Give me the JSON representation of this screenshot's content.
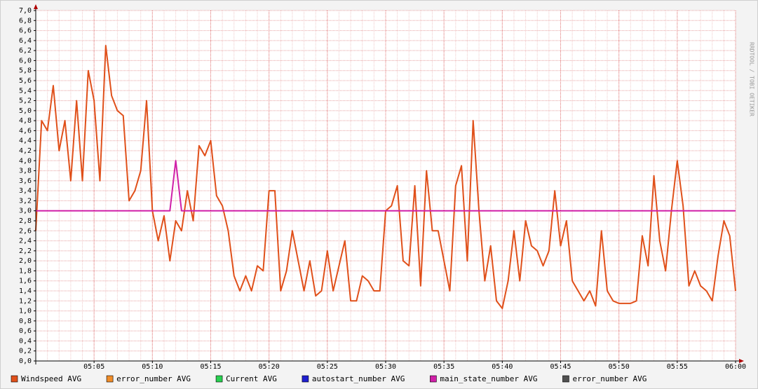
{
  "chart_data": {
    "type": "line",
    "watermark": "RRDTOOL / TOBI OETIKER",
    "x": [
      0,
      0.5,
      1,
      1.5,
      2,
      2.5,
      3,
      3.5,
      4,
      4.5,
      5,
      5.5,
      6,
      6.5,
      7,
      7.5,
      8,
      8.5,
      9,
      9.5,
      10,
      10.5,
      11,
      11.5,
      12,
      12.5,
      13,
      13.5,
      14,
      14.5,
      15,
      15.5,
      16,
      16.5,
      17,
      17.5,
      18,
      18.5,
      19,
      19.5,
      20,
      20.5,
      21,
      21.5,
      22,
      22.5,
      23,
      23.5,
      24,
      24.5,
      25,
      25.5,
      26,
      26.5,
      27,
      27.5,
      28,
      28.5,
      29,
      29.5,
      30,
      30.5,
      31,
      31.5,
      32,
      32.5,
      33,
      33.5,
      34,
      34.5,
      35,
      35.5,
      36,
      36.5,
      37,
      37.5,
      38,
      38.5,
      39,
      39.5,
      40,
      40.5,
      41,
      41.5,
      42,
      42.5,
      43,
      43.5,
      44,
      44.5,
      45,
      45.5,
      46,
      46.5,
      47,
      47.5,
      48,
      48.5,
      49,
      49.5,
      50,
      50.5,
      51,
      51.5,
      52,
      52.5,
      53,
      53.5,
      54,
      54.5,
      55,
      55.5,
      56,
      56.5,
      57,
      57.5,
      58,
      58.5,
      59,
      59.5,
      60
    ],
    "series": [
      {
        "name": "Windspeed AVG",
        "color": "#e0501a",
        "values": [
          2.6,
          4.8,
          4.6,
          5.5,
          4.2,
          4.8,
          3.6,
          5.2,
          3.6,
          5.8,
          5.2,
          3.6,
          6.3,
          5.3,
          5.0,
          4.9,
          3.2,
          3.4,
          3.8,
          5.2,
          3.0,
          2.4,
          2.9,
          2.0,
          2.8,
          2.6,
          3.4,
          2.8,
          4.3,
          4.1,
          4.4,
          3.3,
          3.1,
          2.6,
          1.7,
          1.4,
          1.7,
          1.4,
          1.9,
          1.8,
          3.4,
          3.4,
          1.4,
          1.8,
          2.6,
          2.0,
          1.4,
          2.0,
          1.3,
          1.4,
          2.2,
          1.4,
          1.9,
          2.4,
          1.2,
          1.2,
          1.7,
          1.6,
          1.4,
          1.4,
          3.0,
          3.1,
          3.5,
          2.0,
          1.9,
          3.5,
          1.5,
          3.8,
          2.6,
          2.6,
          2.0,
          1.4,
          3.5,
          3.9,
          2.0,
          4.8,
          3.0,
          1.6,
          2.3,
          1.2,
          1.05,
          1.6,
          2.6,
          1.6,
          2.8,
          2.3,
          2.2,
          1.9,
          2.2,
          3.4,
          2.3,
          2.8,
          1.6,
          1.4,
          1.2,
          1.4,
          1.1,
          2.6,
          1.4,
          1.2,
          1.15,
          1.15,
          1.15,
          1.2,
          2.5,
          1.9,
          3.7,
          2.4,
          1.8,
          3.0,
          4.0,
          3.1,
          1.5,
          1.8,
          1.5,
          1.4,
          1.2,
          2.1,
          2.8,
          2.5,
          1.4
        ]
      },
      {
        "name": "error_number AVG",
        "color": "#f08c28",
        "values": [
          null,
          null,
          null,
          null,
          null,
          null,
          null,
          null,
          null,
          null,
          null,
          null,
          null,
          null,
          null,
          null,
          null,
          null,
          null,
          null,
          null,
          null,
          null,
          null,
          null,
          null,
          null,
          null,
          null,
          null,
          null,
          null,
          null,
          null,
          null,
          null,
          null,
          null,
          null,
          null,
          null,
          null,
          null,
          null,
          null,
          null,
          null,
          null,
          null,
          null,
          null,
          null,
          null,
          null,
          null,
          null,
          null,
          null,
          null,
          null,
          null,
          null,
          null,
          null,
          null,
          null,
          null,
          null,
          null,
          null,
          null,
          null,
          null,
          null,
          null,
          null,
          null,
          null,
          null,
          null,
          null,
          null,
          null,
          null,
          null,
          null,
          null,
          null,
          null,
          null,
          null,
          null,
          null,
          null,
          null,
          null,
          null,
          null,
          null,
          null,
          null,
          null,
          null,
          null,
          null,
          null,
          null,
          null,
          null,
          null,
          null,
          null,
          null,
          null,
          null,
          null,
          null,
          null,
          null,
          null,
          null
        ]
      },
      {
        "name": "Current AVG",
        "color": "#28d050",
        "values": [
          null,
          null,
          null,
          null,
          null,
          null,
          null,
          null,
          null,
          null,
          null,
          null,
          null,
          null,
          null,
          null,
          null,
          null,
          null,
          null,
          null,
          null,
          null,
          null,
          null,
          null,
          null,
          null,
          null,
          null,
          null,
          null,
          null,
          null,
          null,
          null,
          null,
          null,
          null,
          null,
          null,
          null,
          null,
          null,
          null,
          null,
          null,
          null,
          null,
          null,
          null,
          null,
          null,
          null,
          null,
          null,
          null,
          null,
          null,
          null,
          null,
          null,
          null,
          null,
          null,
          null,
          null,
          null,
          null,
          null,
          null,
          null,
          null,
          null,
          null,
          null,
          null,
          null,
          null,
          null,
          null,
          null,
          null,
          null,
          null,
          null,
          null,
          null,
          null,
          null,
          null,
          null,
          null,
          null,
          null,
          null,
          null,
          null,
          null,
          null,
          null,
          null,
          null,
          null,
          null,
          null,
          null,
          null,
          null,
          null,
          null,
          null,
          null,
          null,
          null,
          null,
          null,
          null,
          null,
          null,
          null
        ]
      },
      {
        "name": "autostart_number AVG",
        "color": "#2020d0",
        "values": [
          null,
          null,
          null,
          null,
          null,
          null,
          null,
          null,
          null,
          null,
          null,
          null,
          null,
          null,
          null,
          null,
          null,
          null,
          null,
          null,
          null,
          null,
          null,
          null,
          null,
          null,
          null,
          null,
          null,
          null,
          null,
          null,
          null,
          null,
          null,
          null,
          null,
          null,
          null,
          null,
          null,
          null,
          null,
          null,
          null,
          null,
          null,
          null,
          null,
          null,
          null,
          null,
          null,
          null,
          null,
          null,
          null,
          null,
          null,
          null,
          null,
          null,
          null,
          null,
          null,
          null,
          null,
          null,
          null,
          null,
          null,
          null,
          null,
          null,
          null,
          null,
          null,
          null,
          null,
          null,
          null,
          null,
          null,
          null,
          null,
          null,
          null,
          null,
          null,
          null,
          null,
          null,
          null,
          null,
          null,
          null,
          null,
          null,
          null,
          null,
          null,
          null,
          null,
          null,
          null,
          null,
          null,
          null,
          null,
          null,
          null,
          null,
          null,
          null,
          null,
          null,
          null,
          null,
          null,
          null,
          null
        ]
      },
      {
        "name": "main_state_number AVG",
        "color": "#d020a8",
        "values": [
          3,
          3,
          3,
          3,
          3,
          3,
          3,
          3,
          3,
          3,
          3,
          3,
          3,
          3,
          3,
          3,
          3,
          3,
          3,
          3,
          3,
          3,
          3,
          3,
          4,
          3,
          3,
          3,
          3,
          3,
          3,
          3,
          3,
          3,
          3,
          3,
          3,
          3,
          3,
          3,
          3,
          3,
          3,
          3,
          3,
          3,
          3,
          3,
          3,
          3,
          3,
          3,
          3,
          3,
          3,
          3,
          3,
          3,
          3,
          3,
          3,
          3,
          3,
          3,
          3,
          3,
          3,
          3,
          3,
          3,
          3,
          3,
          3,
          3,
          3,
          3,
          3,
          3,
          3,
          3,
          3,
          3,
          3,
          3,
          3,
          3,
          3,
          3,
          3,
          3,
          3,
          3,
          3,
          3,
          3,
          3,
          3,
          3,
          3,
          3,
          3,
          3,
          3,
          3,
          3,
          3,
          3,
          3,
          3,
          3,
          3,
          3,
          3,
          3,
          3,
          3,
          3,
          3,
          3,
          3,
          3
        ]
      },
      {
        "name": "error_number AVG",
        "color": "#505050",
        "values": [
          null,
          null,
          null,
          null,
          null,
          null,
          null,
          null,
          null,
          null,
          null,
          null,
          null,
          null,
          null,
          null,
          null,
          null,
          null,
          null,
          null,
          null,
          null,
          null,
          null,
          null,
          null,
          null,
          null,
          null,
          null,
          null,
          null,
          null,
          null,
          null,
          null,
          null,
          null,
          null,
          null,
          null,
          null,
          null,
          null,
          null,
          null,
          null,
          null,
          null,
          null,
          null,
          null,
          null,
          null,
          null,
          null,
          null,
          null,
          null,
          null,
          null,
          null,
          null,
          null,
          null,
          null,
          null,
          null,
          null,
          null,
          null,
          null,
          null,
          null,
          null,
          null,
          null,
          null,
          null,
          null,
          null,
          null,
          null,
          null,
          null,
          null,
          null,
          null,
          null,
          null,
          null,
          null,
          null,
          null,
          null,
          null,
          null,
          null,
          null,
          null,
          null,
          null,
          null,
          null,
          null,
          null,
          null,
          null,
          null,
          null,
          null,
          null,
          null,
          null,
          null,
          null,
          null,
          null,
          null,
          null
        ]
      }
    ],
    "xlim": [
      0,
      60
    ],
    "xticks": [
      {
        "value": 5,
        "label": "05:05"
      },
      {
        "value": 10,
        "label": "05:10"
      },
      {
        "value": 15,
        "label": "05:15"
      },
      {
        "value": 20,
        "label": "05:20"
      },
      {
        "value": 25,
        "label": "05:25"
      },
      {
        "value": 30,
        "label": "05:30"
      },
      {
        "value": 35,
        "label": "05:35"
      },
      {
        "value": 40,
        "label": "05:40"
      },
      {
        "value": 45,
        "label": "05:45"
      },
      {
        "value": 50,
        "label": "05:50"
      },
      {
        "value": 55,
        "label": "05:55"
      },
      {
        "value": 60,
        "label": "06:00"
      }
    ],
    "ylim": [
      0,
      7
    ],
    "yticks": [
      {
        "value": 0,
        "label": "0,0"
      },
      {
        "value": 0.2,
        "label": "0,2"
      },
      {
        "value": 0.4,
        "label": "0,4"
      },
      {
        "value": 0.6,
        "label": "0,6"
      },
      {
        "value": 0.8,
        "label": "0,8"
      },
      {
        "value": 1,
        "label": "1,0"
      },
      {
        "value": 1.2,
        "label": "1,2"
      },
      {
        "value": 1.4,
        "label": "1,4"
      },
      {
        "value": 1.6,
        "label": "1,6"
      },
      {
        "value": 1.8,
        "label": "1,8"
      },
      {
        "value": 2,
        "label": "2,0"
      },
      {
        "value": 2.2,
        "label": "2,2"
      },
      {
        "value": 2.4,
        "label": "2,4"
      },
      {
        "value": 2.6,
        "label": "2,6"
      },
      {
        "value": 2.8,
        "label": "2,8"
      },
      {
        "value": 3,
        "label": "3,0"
      },
      {
        "value": 3.2,
        "label": "3,2"
      },
      {
        "value": 3.4,
        "label": "3,4"
      },
      {
        "value": 3.6,
        "label": "3,6"
      },
      {
        "value": 3.8,
        "label": "3,8"
      },
      {
        "value": 4,
        "label": "4,0"
      },
      {
        "value": 4.2,
        "label": "4,2"
      },
      {
        "value": 4.4,
        "label": "4,4"
      },
      {
        "value": 4.6,
        "label": "4,6"
      },
      {
        "value": 4.8,
        "label": "4,8"
      },
      {
        "value": 5,
        "label": "5,0"
      },
      {
        "value": 5.2,
        "label": "5,2"
      },
      {
        "value": 5.4,
        "label": "5,4"
      },
      {
        "value": 5.6,
        "label": "5,6"
      },
      {
        "value": 5.8,
        "label": "5,8"
      },
      {
        "value": 6,
        "label": "6,0"
      },
      {
        "value": 6.2,
        "label": "6,2"
      },
      {
        "value": 6.4,
        "label": "6,4"
      },
      {
        "value": 6.6,
        "label": "6,6"
      },
      {
        "value": 6.8,
        "label": "6,8"
      },
      {
        "value": 7,
        "label": "7,0"
      }
    ],
    "grid": true,
    "legend": "bottom"
  }
}
